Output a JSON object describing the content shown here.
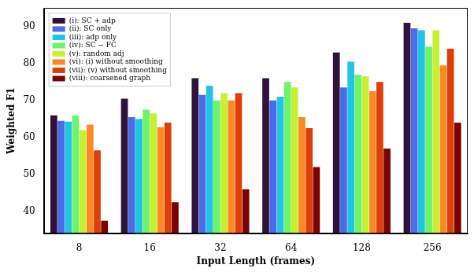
{
  "chart_data": {
    "type": "bar",
    "x_label": "Input Length (frames)",
    "y_label": "Weighted F1",
    "categories": [
      "8",
      "16",
      "32",
      "64",
      "128",
      "256"
    ],
    "series": [
      {
        "name": "(i): SC + adp",
        "color": "#30123b",
        "values": [
          66,
          70.5,
          76,
          76,
          83,
          91
        ]
      },
      {
        "name": "(ii): SC only",
        "color": "#4a6ce8",
        "values": [
          64.5,
          65.5,
          71.5,
          70,
          73.5,
          89.5
        ]
      },
      {
        "name": "(iii): adp only",
        "color": "#22c4e4",
        "values": [
          64.3,
          65,
          74,
          71,
          80.5,
          89
        ]
      },
      {
        "name": "(iv): SC − FC",
        "color": "#6ef36a",
        "values": [
          66,
          67.5,
          70,
          75,
          77,
          84.5
        ]
      },
      {
        "name": "(v): random adj",
        "color": "#c8ef34",
        "values": [
          62,
          66.5,
          72,
          73.5,
          76.5,
          89
        ]
      },
      {
        "name": "(vi): (i) without smoothing",
        "color": "#fb8a26",
        "values": [
          63.5,
          62.8,
          70,
          65.5,
          72.5,
          79.5
        ]
      },
      {
        "name": "(vii): (v) without smoothing",
        "color": "#de3e0a",
        "values": [
          56.5,
          64,
          72,
          62.5,
          75,
          84
        ]
      },
      {
        "name": "(viii): coarsened graph",
        "color": "#7a0403",
        "values": [
          37.5,
          42.5,
          46,
          52,
          57,
          64
        ]
      }
    ],
    "ylim": [
      34,
      95
    ],
    "yticks": [
      40,
      50,
      60,
      70,
      80,
      90
    ],
    "grid": false,
    "legend": "upper left"
  }
}
